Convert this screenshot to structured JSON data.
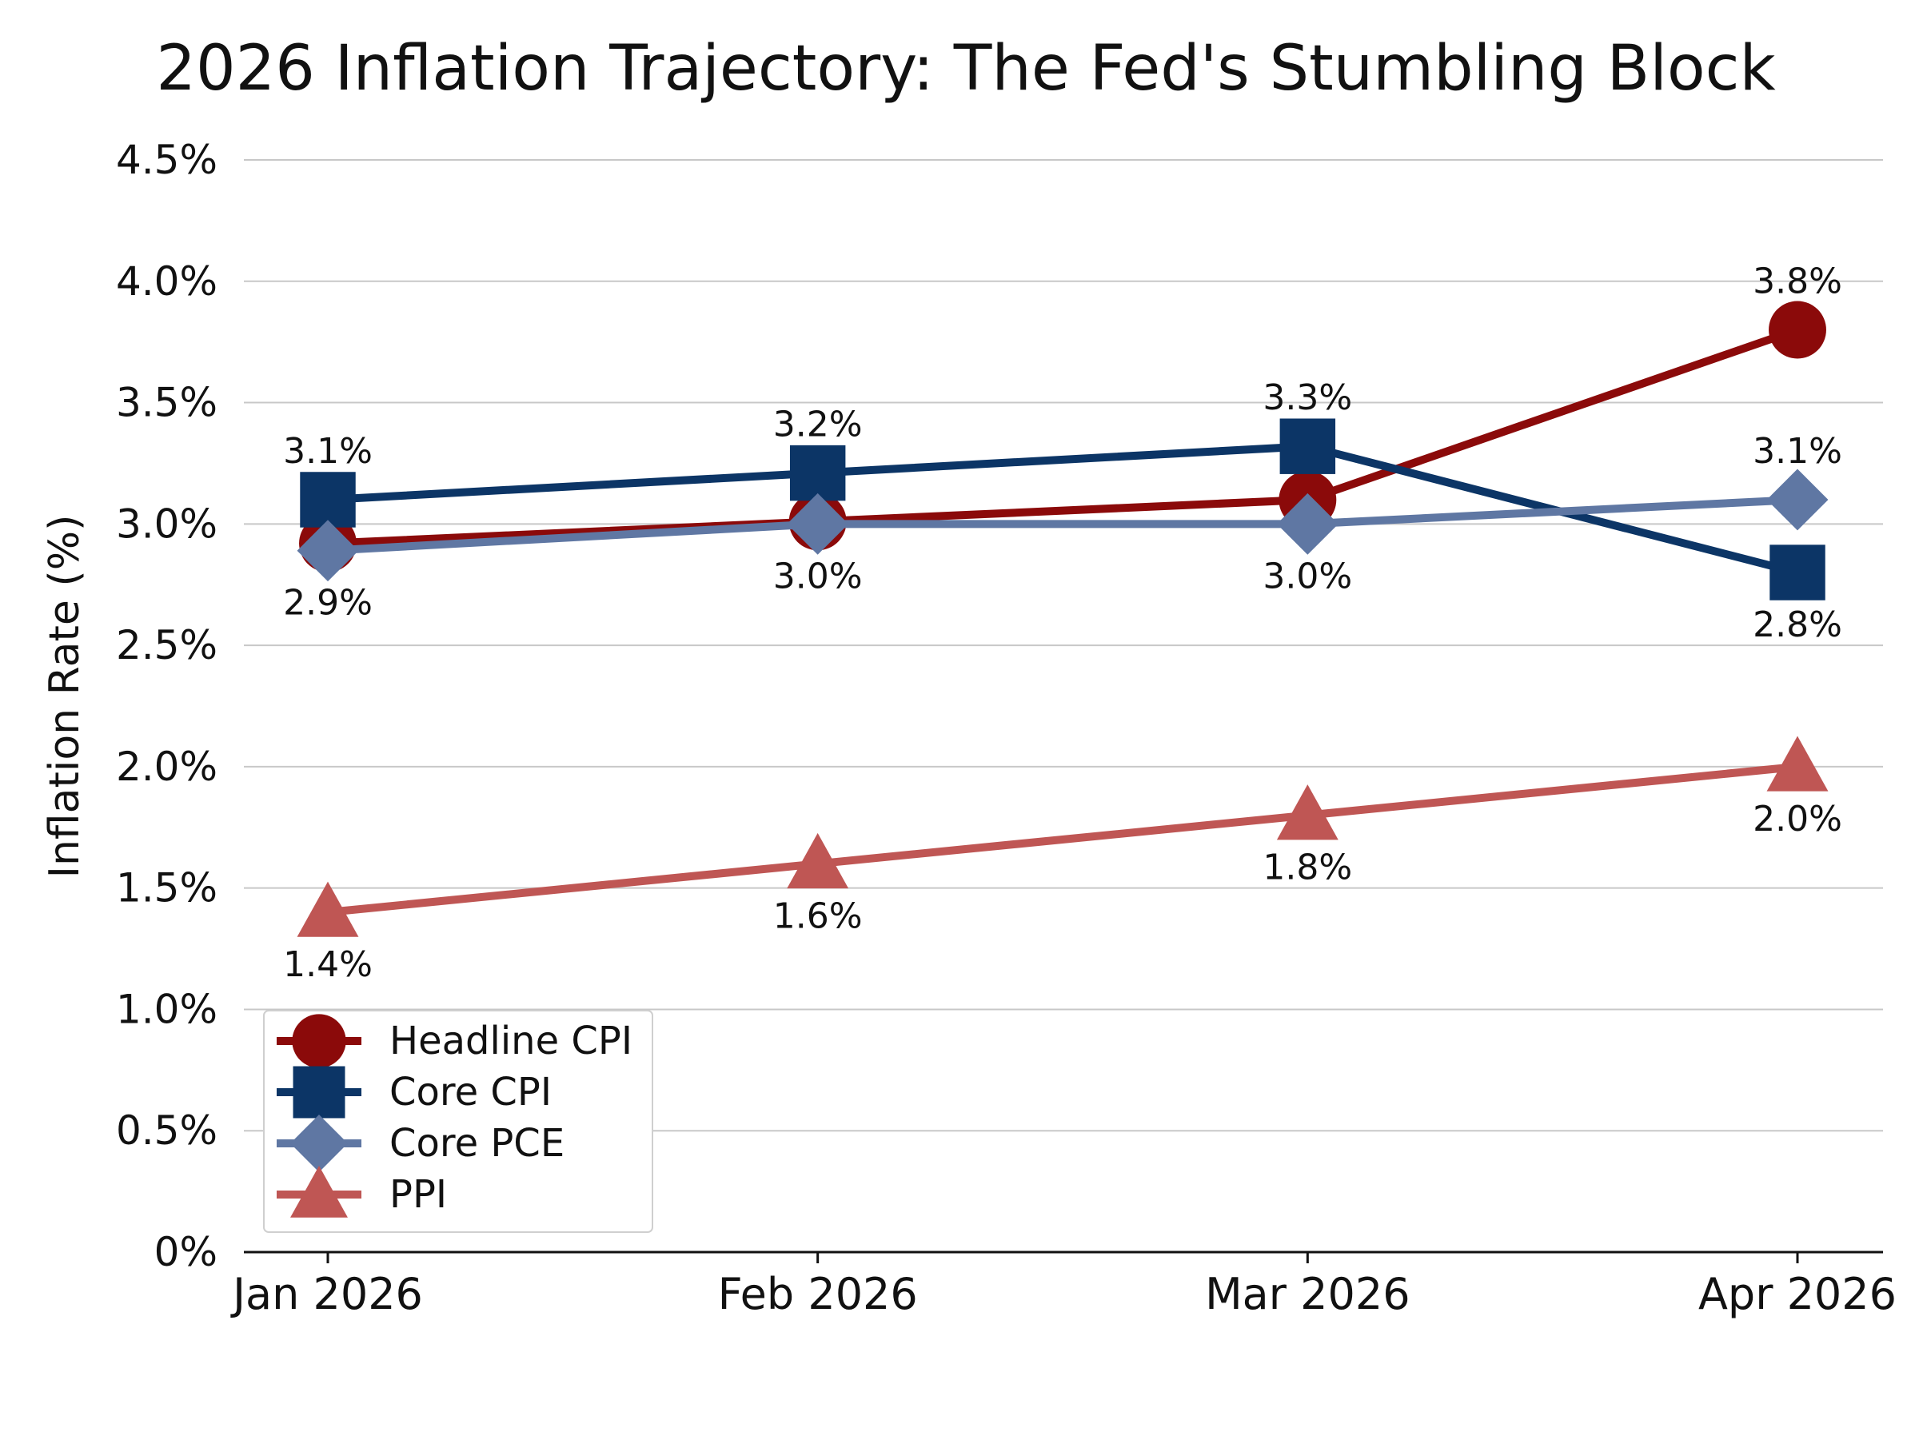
{
  "chart_data": {
    "type": "line",
    "title": "2026 Inflation Trajectory: The Fed's Stumbling Block",
    "xlabel": "",
    "ylabel": "Inflation Rate (%)",
    "categories": [
      "Jan 2026",
      "Feb 2026",
      "Mar 2026",
      "Apr 2026"
    ],
    "ylim": [
      0,
      4.5
    ],
    "yticks": [
      0,
      0.5,
      1.0,
      1.5,
      2.0,
      2.5,
      3.0,
      3.5,
      4.0,
      4.5
    ],
    "ytick_labels": [
      "0%",
      "0.5%",
      "1.0%",
      "1.5%",
      "2.0%",
      "2.5%",
      "3.0%",
      "3.5%",
      "4.0%",
      "4.5%"
    ],
    "grid": "horizontal",
    "legend_position": "lower-left",
    "series": [
      {
        "name": "Headline CPI",
        "values": [
          2.92,
          3.01,
          3.1,
          3.8
        ],
        "point_labels": [
          "",
          "",
          "",
          "3.8%"
        ],
        "label_side": [
          "above",
          "above",
          "above",
          "above"
        ],
        "color": "#8b0a0a",
        "marker": "circle"
      },
      {
        "name": "Core CPI",
        "values": [
          3.1,
          3.21,
          3.32,
          2.8
        ],
        "point_labels": [
          "3.1%",
          "3.2%",
          "3.3%",
          "2.8%"
        ],
        "label_side": [
          "above",
          "above",
          "above",
          "below"
        ],
        "color": "#0c3566",
        "marker": "square"
      },
      {
        "name": "Core PCE",
        "values": [
          2.89,
          3.0,
          3.0,
          3.1
        ],
        "point_labels": [
          "2.9%",
          "3.0%",
          "3.0%",
          "3.1%"
        ],
        "label_side": [
          "below",
          "below",
          "below",
          "above"
        ],
        "color": "#5f77a3",
        "marker": "diamond"
      },
      {
        "name": "PPI",
        "values": [
          1.4,
          1.6,
          1.8,
          2.0
        ],
        "point_labels": [
          "1.4%",
          "1.6%",
          "1.8%",
          "2.0%"
        ],
        "label_side": [
          "below",
          "below",
          "below",
          "below"
        ],
        "color": "#bf5654",
        "marker": "triangle"
      }
    ]
  }
}
